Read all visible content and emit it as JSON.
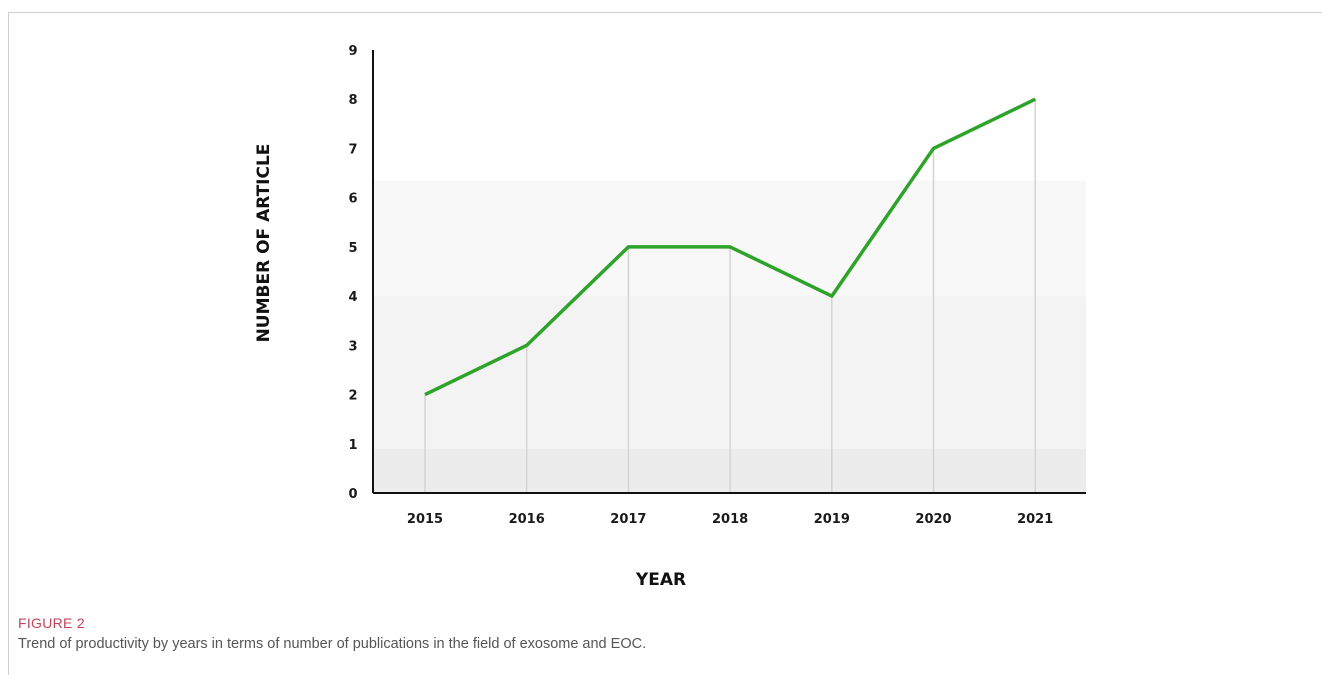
{
  "chart_data": {
    "type": "line",
    "categories": [
      "2015",
      "2016",
      "2017",
      "2018",
      "2019",
      "2020",
      "2021"
    ],
    "series": [
      {
        "values": [
          2,
          3,
          5,
          5,
          4,
          7,
          8
        ]
      }
    ],
    "y_ticks": [
      "0",
      "1",
      "2",
      "3",
      "4",
      "5",
      "6",
      "7",
      "8",
      "9"
    ],
    "xlabel": "YEAR",
    "ylabel": "NUMBER OF ARTICLE",
    "ylim": [
      0,
      9
    ],
    "line_color": "#2ea32a",
    "drop_line_color": "#d4d4d4",
    "band_color": "#eeeeee"
  },
  "figure": {
    "label": "FIGURE 2",
    "caption": "Trend of productivity by years in terms of number of publications in the field of exosome and EOC."
  }
}
